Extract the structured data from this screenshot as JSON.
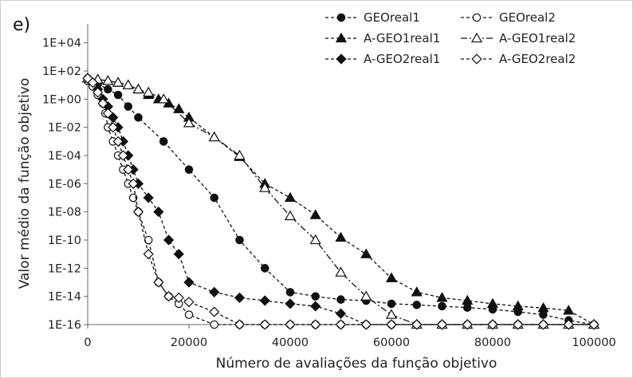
{
  "panel_label": "e)",
  "chart_data": {
    "type": "line",
    "xlabel": "Número de avaliações da função objetivo",
    "ylabel": "Valor médio da função objetivo",
    "xlim": [
      0,
      100000
    ],
    "ylim": [
      1e-16,
      100000.0
    ],
    "yscale": "log",
    "grid": false,
    "legend_position": "top-right",
    "x_ticks": [
      0,
      20000,
      40000,
      60000,
      80000,
      100000
    ],
    "x_tick_labels": [
      "0",
      "20000",
      "40000",
      "60000",
      "80000",
      "100000"
    ],
    "y_ticks": [
      1e-16,
      1e-14,
      1e-12,
      1e-10,
      1e-08,
      1e-06,
      0.0001,
      0.01,
      1.0,
      100.0,
      10000.0
    ],
    "y_tick_labels": [
      "1E-16",
      "1E-14",
      "1E-12",
      "1E-10",
      "1E-08",
      "1E-06",
      "1E-04",
      "1E-02",
      "1E+00",
      "1E+02",
      "1E+04"
    ],
    "series": [
      {
        "name": "GEOreal1",
        "marker": "circle",
        "filled": true,
        "dash": "4,3",
        "x": [
          0,
          2000,
          4000,
          6000,
          8000,
          10000,
          15000,
          20000,
          25000,
          30000,
          35000,
          40000,
          45000,
          50000,
          55000,
          60000,
          65000,
          70000,
          75000,
          80000,
          85000,
          90000,
          95000,
          100000
        ],
        "y": [
          30,
          12,
          5,
          2,
          0.3,
          0.05,
          0.001,
          1e-05,
          1e-07,
          1e-10,
          1e-12,
          2e-14,
          1e-14,
          6e-15,
          5e-15,
          3e-15,
          2.5e-15,
          2e-15,
          1.6e-15,
          1.2e-15,
          8e-16,
          5e-16,
          2e-16,
          1e-16
        ]
      },
      {
        "name": "GEOreal2",
        "marker": "circle",
        "filled": false,
        "dash": "4,3",
        "x": [
          0,
          1000,
          2000,
          3000,
          3500,
          4000,
          5000,
          6000,
          7000,
          8000,
          9000,
          10000,
          12000,
          14000,
          16000,
          18000,
          20000,
          25000,
          30000,
          35000,
          40000,
          45000,
          50000,
          55000,
          60000,
          65000,
          70000,
          75000,
          80000,
          85000,
          90000,
          95000,
          100000
        ],
        "y": [
          20,
          8,
          2,
          0.5,
          0.1,
          0.01,
          0.001,
          0.0001,
          1e-05,
          1e-06,
          1e-07,
          1e-08,
          1e-10,
          1e-13,
          1e-14,
          3e-15,
          5e-16,
          1e-16,
          1e-16,
          1e-16,
          1e-16,
          1e-16,
          1e-16,
          1e-16,
          1e-16,
          1e-16,
          1e-16,
          1e-16,
          1e-16,
          1e-16,
          1e-16,
          1e-16,
          1e-16
        ]
      },
      {
        "name": "A-GEO1real1",
        "marker": "triangle",
        "filled": true,
        "dash": "4,3",
        "x": [
          0,
          2000,
          4000,
          6000,
          8000,
          10000,
          12000,
          14000,
          16000,
          18000,
          20000,
          25000,
          30000,
          35000,
          40000,
          45000,
          50000,
          55000,
          60000,
          65000,
          70000,
          75000,
          80000,
          85000,
          90000,
          95000,
          100000
        ],
        "y": [
          30,
          25,
          20,
          15,
          10,
          5,
          2,
          1,
          0.5,
          0.2,
          0.05,
          0.002,
          8e-05,
          1e-06,
          1e-07,
          6e-09,
          1.5e-10,
          1e-11,
          2e-13,
          2e-14,
          8e-15,
          5e-15,
          3e-15,
          2e-15,
          1.5e-15,
          1e-15,
          1e-16
        ]
      },
      {
        "name": "A-GEO1real2",
        "marker": "triangle",
        "filled": false,
        "dash": "8,3,2,3",
        "x": [
          0,
          2000,
          4000,
          6000,
          8000,
          10000,
          12000,
          15000,
          20000,
          25000,
          30000,
          35000,
          40000,
          45000,
          50000,
          55000,
          60000,
          65000,
          70000,
          75000,
          80000,
          85000,
          90000,
          95000,
          100000
        ],
        "y": [
          30,
          25,
          20,
          15,
          10,
          5,
          3,
          1,
          0.02,
          0.002,
          0.0001,
          5e-07,
          5e-09,
          1e-10,
          5e-13,
          1e-14,
          5e-16,
          1e-16,
          1e-16,
          1e-16,
          1e-16,
          1e-16,
          1e-16,
          1e-16,
          1e-16
        ]
      },
      {
        "name": "A-GEO2real1",
        "marker": "diamond",
        "filled": true,
        "dash": "4,3",
        "x": [
          0,
          1000,
          2000,
          3000,
          4000,
          5000,
          6000,
          7000,
          8000,
          9000,
          10000,
          12000,
          14000,
          16000,
          18000,
          20000,
          25000,
          30000,
          35000,
          40000,
          45000,
          50000,
          55000,
          60000,
          65000,
          70000,
          75000,
          80000,
          85000,
          90000,
          95000,
          100000
        ],
        "y": [
          30,
          15,
          5,
          1,
          0.3,
          0.05,
          0.01,
          0.001,
          0.0001,
          1e-05,
          1e-06,
          1e-07,
          1e-08,
          1e-10,
          1e-11,
          1e-13,
          2e-14,
          8e-15,
          5e-15,
          3e-15,
          2e-15,
          6e-16,
          1e-16,
          1e-16,
          1e-16,
          1e-16,
          1e-16,
          1e-16,
          1e-16,
          1e-16,
          1e-16,
          1e-16
        ]
      },
      {
        "name": "A-GEO2real2",
        "marker": "diamond",
        "filled": false,
        "dash": "4,3",
        "x": [
          0,
          1000,
          2000,
          3000,
          4000,
          5000,
          6000,
          7000,
          8000,
          9000,
          10000,
          12000,
          14000,
          16000,
          18000,
          20000,
          25000,
          30000,
          35000,
          40000,
          45000,
          50000,
          55000,
          60000,
          65000,
          70000,
          75000,
          80000,
          85000,
          90000,
          95000,
          100000
        ],
        "y": [
          30,
          15,
          3,
          0.5,
          0.1,
          0.01,
          0.001,
          0.0001,
          1e-05,
          1e-06,
          1e-08,
          1e-11,
          1e-13,
          1e-14,
          8e-15,
          4e-15,
          8e-16,
          1e-16,
          1e-16,
          1e-16,
          1e-16,
          1e-16,
          1e-16,
          1e-16,
          1e-16,
          1e-16,
          1e-16,
          1e-16,
          1e-16,
          1e-16,
          1e-16,
          1e-16
        ]
      }
    ]
  }
}
